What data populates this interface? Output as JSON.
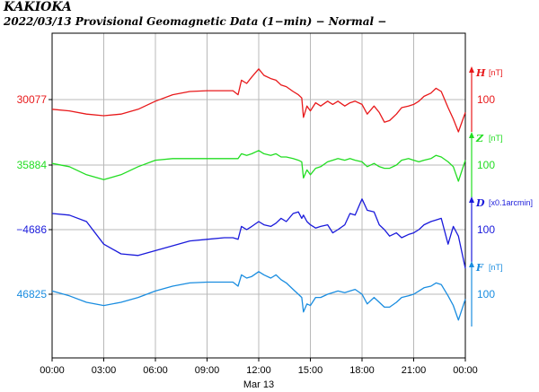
{
  "header": {
    "station": "KAKIOKA",
    "subtitle": "2022/03/13  Provisional Geomagnetic Data (1−min)  − Normal −"
  },
  "chart_data": {
    "type": "line",
    "x_ticks": [
      "00:00",
      "03:00",
      "06:00",
      "09:00",
      "12:00",
      "15:00",
      "18:00",
      "21:00",
      "00:00"
    ],
    "x_date_label": "Mar 13",
    "xlim_hours": [
      0,
      24
    ],
    "grid": true,
    "series": [
      {
        "name": "H",
        "unit": "[nT]",
        "scale_label": "100",
        "base_label": "30077",
        "color": "#e8191b",
        "x": [
          0,
          1,
          2,
          3,
          4,
          5,
          6,
          7,
          8,
          9,
          10,
          10.5,
          10.8,
          11,
          11.3,
          11.6,
          12,
          12.3,
          12.7,
          13,
          13.3,
          13.6,
          14,
          14.3,
          14.5,
          14.6,
          14.8,
          15,
          15.3,
          15.6,
          16,
          16.3,
          16.6,
          17,
          17.3,
          17.6,
          18,
          18.3,
          18.7,
          19,
          19.3,
          19.6,
          20,
          20.3,
          20.7,
          21,
          21.3,
          21.6,
          22,
          22.3,
          22.6,
          23,
          23.3,
          23.6,
          24
        ],
        "y": [
          -12,
          -14,
          -18,
          -20,
          -18,
          -12,
          -2,
          6,
          10,
          11,
          11,
          11,
          6,
          24,
          20,
          28,
          38,
          30,
          26,
          24,
          18,
          16,
          10,
          6,
          2,
          -22,
          -8,
          -14,
          -4,
          -8,
          -2,
          -6,
          -2,
          -8,
          -4,
          -2,
          -6,
          -18,
          -8,
          -16,
          -28,
          -26,
          -18,
          -10,
          -8,
          -6,
          -2,
          4,
          8,
          14,
          10,
          -10,
          -24,
          -40,
          -16
        ]
      },
      {
        "name": "Z",
        "unit": "[nT]",
        "scale_label": "100",
        "base_label": "35884",
        "color": "#22dd22",
        "x": [
          0,
          1,
          2,
          3,
          4,
          5,
          6,
          7,
          8,
          9,
          10,
          10.5,
          10.8,
          11,
          11.3,
          11.6,
          12,
          12.3,
          12.7,
          13,
          13.3,
          13.6,
          14,
          14.3,
          14.5,
          14.6,
          14.8,
          15,
          15.3,
          15.6,
          16,
          16.3,
          16.6,
          17,
          17.3,
          17.6,
          18,
          18.3,
          18.7,
          19,
          19.3,
          19.6,
          20,
          20.3,
          20.7,
          21,
          21.3,
          21.6,
          22,
          22.3,
          22.6,
          23,
          23.3,
          23.6,
          24
        ],
        "y": [
          2,
          -2,
          -12,
          -18,
          -12,
          -2,
          6,
          8,
          8,
          8,
          8,
          8,
          8,
          14,
          12,
          14,
          18,
          14,
          12,
          14,
          10,
          10,
          8,
          6,
          4,
          -16,
          -6,
          -12,
          -4,
          -2,
          4,
          6,
          8,
          6,
          8,
          6,
          4,
          -2,
          2,
          -2,
          -4,
          -4,
          0,
          6,
          8,
          6,
          4,
          6,
          8,
          12,
          10,
          4,
          -2,
          -20,
          6
        ]
      },
      {
        "name": "D",
        "unit": "[x0.1arcmin]",
        "scale_label": "100",
        "base_label": "−4686",
        "color": "#1a1adb",
        "x": [
          0,
          1,
          2,
          3,
          4,
          5,
          6,
          7,
          8,
          9,
          10,
          10.5,
          10.8,
          11,
          11.3,
          11.6,
          12,
          12.3,
          12.7,
          13,
          13.3,
          13.6,
          14,
          14.3,
          14.5,
          14.6,
          14.8,
          15,
          15.3,
          15.6,
          16,
          16.3,
          16.6,
          17,
          17.3,
          17.6,
          18,
          18.3,
          18.7,
          19,
          19.3,
          19.6,
          20,
          20.3,
          20.7,
          21,
          21.3,
          21.6,
          22,
          22.3,
          22.6,
          23,
          23.3,
          23.6,
          24
        ],
        "y": [
          20,
          18,
          10,
          -18,
          -30,
          -32,
          -26,
          -20,
          -14,
          -12,
          -10,
          -10,
          -12,
          4,
          0,
          4,
          10,
          6,
          4,
          8,
          14,
          10,
          20,
          22,
          14,
          18,
          10,
          6,
          2,
          4,
          6,
          -4,
          0,
          6,
          20,
          18,
          38,
          24,
          22,
          6,
          0,
          -8,
          -4,
          -10,
          -6,
          -4,
          0,
          6,
          10,
          12,
          14,
          -18,
          4,
          -8,
          -48
        ]
      },
      {
        "name": "F",
        "unit": "[nT]",
        "scale_label": "100",
        "base_label": "46825",
        "color": "#1a8de0",
        "x": [
          0,
          1,
          2,
          3,
          4,
          5,
          6,
          7,
          8,
          9,
          10,
          10.5,
          10.8,
          11,
          11.3,
          11.6,
          12,
          12.3,
          12.7,
          13,
          13.3,
          13.6,
          14,
          14.3,
          14.5,
          14.6,
          14.8,
          15,
          15.3,
          15.6,
          16,
          16.3,
          16.6,
          17,
          17.3,
          17.6,
          18,
          18.3,
          18.7,
          19,
          19.3,
          19.6,
          20,
          20.3,
          20.7,
          21,
          21.3,
          21.6,
          22,
          22.3,
          22.6,
          23,
          23.3,
          23.6,
          24
        ],
        "y": [
          4,
          -2,
          -10,
          -14,
          -10,
          -4,
          4,
          10,
          14,
          15,
          15,
          15,
          10,
          24,
          20,
          22,
          28,
          24,
          20,
          24,
          18,
          14,
          6,
          0,
          -4,
          -22,
          -12,
          -14,
          -4,
          -4,
          0,
          2,
          4,
          2,
          4,
          6,
          0,
          -12,
          -4,
          -10,
          -16,
          -16,
          -10,
          -4,
          -2,
          0,
          4,
          8,
          10,
          14,
          12,
          -2,
          -14,
          -32,
          -6
        ]
      }
    ]
  }
}
